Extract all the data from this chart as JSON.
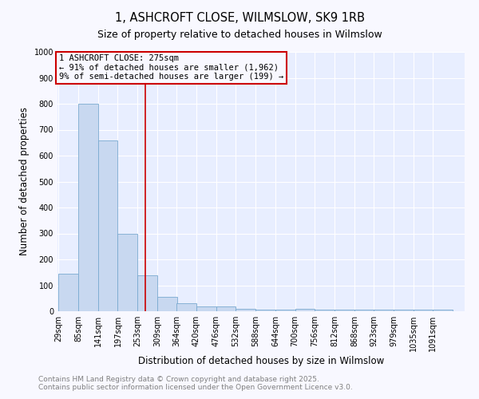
{
  "title_line1": "1, ASHCROFT CLOSE, WILMSLOW, SK9 1RB",
  "title_line2": "Size of property relative to detached houses in Wilmslow",
  "xlabel": "Distribution of detached houses by size in Wilmslow",
  "ylabel": "Number of detached properties",
  "bin_edges": [
    29,
    85,
    141,
    197,
    253,
    309,
    364,
    420,
    476,
    532,
    588,
    644,
    700,
    756,
    812,
    868,
    923,
    979,
    1035,
    1091,
    1147
  ],
  "bar_heights": [
    145,
    800,
    660,
    300,
    140,
    55,
    30,
    18,
    18,
    10,
    5,
    5,
    10,
    5,
    5,
    5,
    5,
    5,
    5,
    5
  ],
  "bar_color": "#c8d8f0",
  "bar_edge_color": "#7aaad0",
  "vline_x": 275,
  "vline_color": "#cc0000",
  "annotation_text": "1 ASHCROFT CLOSE: 275sqm\n← 91% of detached houses are smaller (1,962)\n9% of semi-detached houses are larger (199) →",
  "annotation_box_color": "#cc0000",
  "ylim": [
    0,
    1000
  ],
  "yticks": [
    0,
    100,
    200,
    300,
    400,
    500,
    600,
    700,
    800,
    900,
    1000
  ],
  "footer_line1": "Contains HM Land Registry data © Crown copyright and database right 2025.",
  "footer_line2": "Contains public sector information licensed under the Open Government Licence v3.0.",
  "fig_bg_color": "#f8f8ff",
  "plot_bg_color": "#e8eeff",
  "grid_color": "#ffffff",
  "title_fontsize": 10.5,
  "subtitle_fontsize": 9,
  "axis_label_fontsize": 8.5,
  "tick_fontsize": 7,
  "footer_fontsize": 6.5,
  "annotation_fontsize": 7.5
}
